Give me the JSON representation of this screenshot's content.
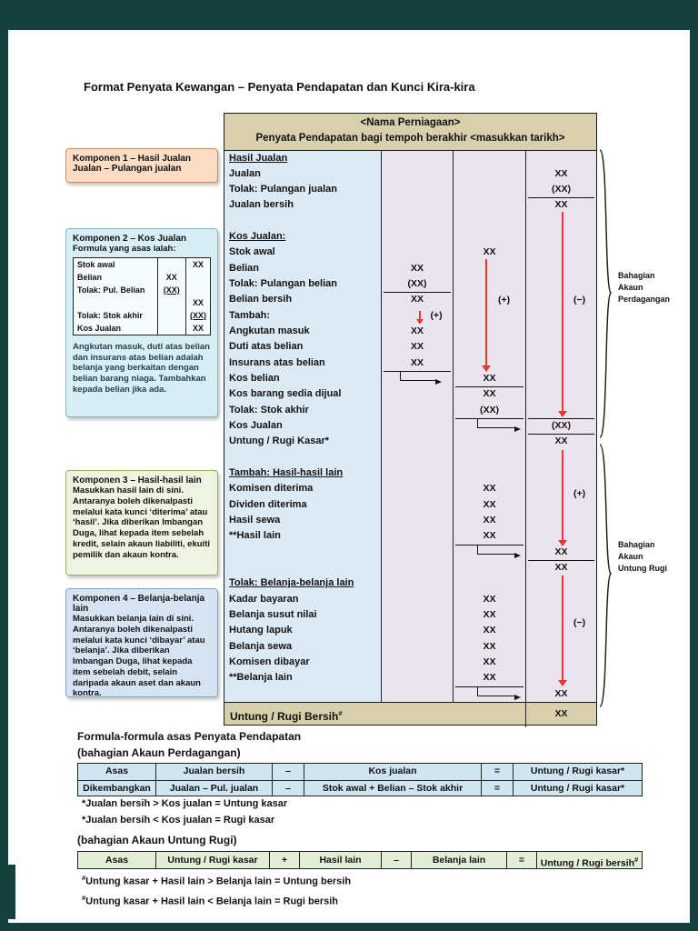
{
  "page": {
    "title": "Format Penyata Kewangan – Penyata Pendapatan dan Kunci Kira-kira",
    "frame_color": "#15413c"
  },
  "main_table": {
    "header": {
      "line1": "<Nama Perniagaan>",
      "line2": "Penyata Pendapatan bagi tempoh berakhir <masukkan tarikh>"
    },
    "rows": [
      {
        "l": "Hasil Jualan",
        "lu": 1
      },
      {
        "l": "Jualan",
        "c3": "XX"
      },
      {
        "l": "Tolak: Pulangan jualan",
        "c3": "(XX)"
      },
      {
        "l": "Jualan bersih",
        "c3": "XX",
        "t3": 1
      },
      {},
      {
        "l": "Kos Jualan:",
        "lu": 1
      },
      {
        "l": "Stok awal",
        "c2": "XX"
      },
      {
        "l": "Belian",
        "c1": "XX"
      },
      {
        "l": "Tolak: Pulangan belian",
        "c1": "(XX)"
      },
      {
        "l": "Belian bersih",
        "c1": "XX",
        "t1": 1
      },
      {
        "l": "Tambah:",
        "m1": 1,
        "c1": "(+)"
      },
      {
        "l": "Angkutan masuk",
        "c1": "XX"
      },
      {
        "l": "Duti atas belian",
        "c1": "XX"
      },
      {
        "l": "Insurans atas belian",
        "c1": "XX"
      },
      {
        "l": "Kos belian",
        "e1": 1,
        "t1": 1,
        "c2": "XX"
      },
      {
        "l": "Kos barang sedia dijual",
        "c2": "XX",
        "t2": 1
      },
      {
        "l": "Tolak: Stok akhir",
        "c2": "(XX)"
      },
      {
        "l": "Kos Jualan",
        "e2": 1,
        "t2": 1,
        "c3": "(XX)",
        "t3": 1
      },
      {
        "l": "Untung / Rugi Kasar*",
        "c3": "XX",
        "t3": 1
      },
      {},
      {
        "l": "Tambah: Hasil-hasil lain",
        "lu": 1
      },
      {
        "l": "Komisen diterima",
        "c2": "XX"
      },
      {
        "l": "Dividen diterima",
        "c2": "XX"
      },
      {
        "l": "Hasil sewa",
        "c2": "XX"
      },
      {
        "l": "**Hasil lain",
        "c2": "XX"
      },
      {
        "e2": 1,
        "t2": 1,
        "c3": "XX"
      },
      {
        "c3": "XX",
        "t3": 1
      },
      {
        "l": "Tolak: Belanja-belanja lain",
        "lu": 1
      },
      {
        "l": "Kadar bayaran",
        "c2": "XX"
      },
      {
        "l": "Belanja susut nilai",
        "c2": "XX"
      },
      {
        "l": "Hutang lapuk",
        "c2": "XX"
      },
      {
        "l": "Belanja sewa",
        "c2": "XX"
      },
      {
        "l": "Komisen dibayar",
        "c2": "XX"
      },
      {
        "l": "**Belanja lain",
        "c2": "XX"
      },
      {
        "e2": 1,
        "t2": 1,
        "c3": "XX"
      }
    ],
    "footer": {
      "label": "Untung / Rugi Bersih",
      "sup": "#",
      "value": "XX"
    }
  },
  "arrows": {
    "mini_plus": "(+)",
    "col2_plus": "(+)",
    "col3_minus_top": "(−)",
    "col3_plus": "(+)",
    "col3_minus_bottom": "(−)"
  },
  "braces": {
    "perdagangan": [
      "Bahagian",
      "Akaun",
      "Perdagangan"
    ],
    "untung_rugi": [
      "Bahagian",
      "Akaun",
      "Untung Rugi"
    ]
  },
  "komponen1": {
    "title": "Komponen 1 – Hasil Jualan",
    "line2": "Jualan – Pulangan jualan"
  },
  "komponen2": {
    "title": "Komponen 2 – Kos Jualan",
    "subtitle": "Formula yang asas ialah:",
    "table": {
      "rows": [
        {
          "l": "Stok awal",
          "a": "",
          "b": "XX"
        },
        {
          "l": "Belian",
          "a": "XX",
          "b": ""
        },
        {
          "l": "Tolak: Pul. Belian",
          "a": "(XX)",
          "ua": 1,
          "b": ""
        },
        {
          "l": "",
          "a": "",
          "b": "XX"
        },
        {
          "l": "Tolak: Stok akhir",
          "a": "",
          "b": "(XX)",
          "ub": 1
        },
        {
          "l": "Kos Jualan",
          "a": "",
          "b": "XX"
        }
      ]
    },
    "note": "Angkutan masuk, duti atas belian dan insurans atas belian adalah belanja yang berkaitan dengan belian barang niaga. Tambahkan kepada belian jika ada."
  },
  "komponen3": {
    "title": "Komponen 3 – Hasil-hasil lain",
    "body": "Masukkan hasil lain di sini. Antaranya boleh dikenalpasti melalui kata kunci ‘diterima’ atau ‘hasil’. Jika diberikan Imbangan Duga, lihat kepada item sebelah kredit, selain akaun liabiliti, ekuiti pemilik dan akaun kontra."
  },
  "komponen4": {
    "title": "Komponen 4 – Belanja-belanja lain",
    "body": "Masukkan belanja lain di sini. Antaranya boleh dikenalpasti melalui kata kunci ‘dibayar’ atau ‘belanja’. Jika diberikan Imbangan Duga, lihat kepada item sebelah debit, selain daripada akaun aset dan akaun kontra."
  },
  "formulas": {
    "heading": "Formula-formula asas Penyata Pendapatan",
    "section1": {
      "heading": "(bahagian Akaun Perdagangan)",
      "table": [
        [
          "Asas",
          "Jualan bersih",
          "–",
          "Kos jualan",
          "=",
          "Untung / Rugi kasar*"
        ],
        [
          "Dikembangkan",
          "Jualan – Pul. jualan",
          "–",
          "Stok awal + Belian – Stok akhir",
          "=",
          "Untung / Rugi kasar*"
        ]
      ],
      "notes": [
        "*Jualan bersih > Kos jualan = Untung kasar",
        "*Jualan bersih < Kos jualan = Rugi kasar"
      ]
    },
    "section2": {
      "heading": "(bahagian Akaun Untung Rugi)",
      "table_row": [
        {
          "t": "Asas"
        },
        {
          "t": "Untung / Rugi kasar"
        },
        {
          "t": "+"
        },
        {
          "t": "Hasil lain"
        },
        {
          "t": "–"
        },
        {
          "t": "Belanja lain"
        },
        {
          "t": "="
        },
        {
          "t": "Untung / Rugi bersih",
          "sup": "#"
        }
      ],
      "notes": [
        {
          "sup": "#",
          "t": "Untung kasar + Hasil lain > Belanja lain = Untung bersih"
        },
        {
          "sup": "#",
          "t": "Untung kasar + Hasil lain < Belanja lain = Rugi bersih"
        }
      ]
    }
  }
}
